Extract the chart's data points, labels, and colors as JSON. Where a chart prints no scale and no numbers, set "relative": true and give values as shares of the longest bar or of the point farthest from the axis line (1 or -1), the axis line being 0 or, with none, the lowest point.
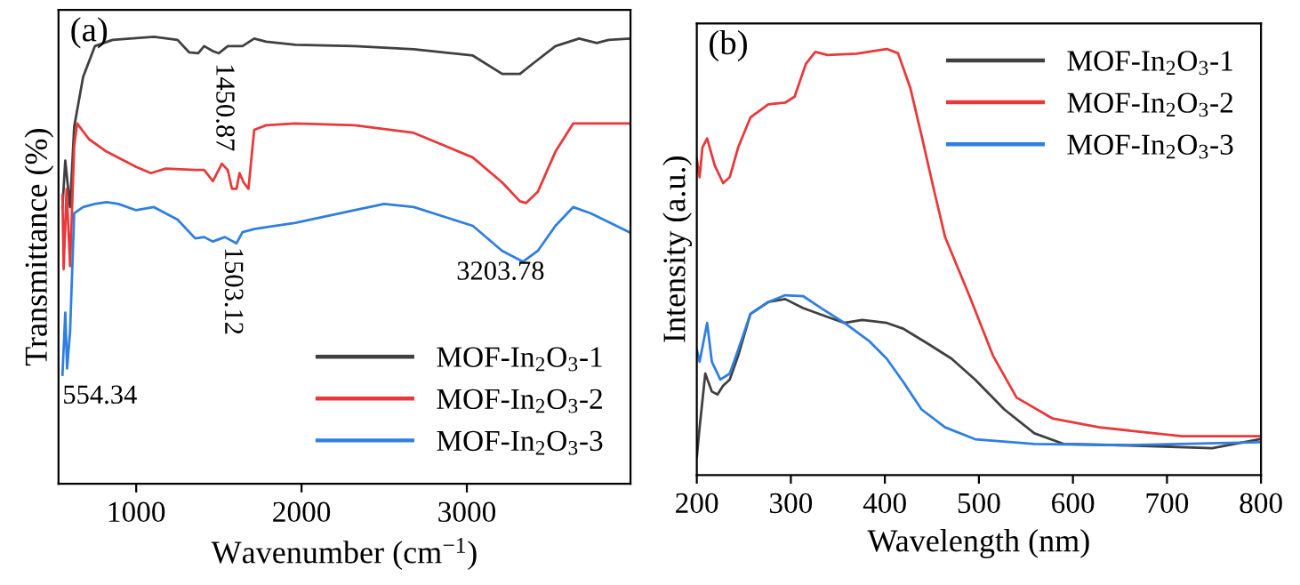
{
  "chart_data": [
    {
      "type": "line",
      "title": "(a)",
      "xlabel": "Wavenumber (cm$^{−1}$)",
      "ylabel": "Transmittance (%)",
      "relative": true,
      "tick_labels": "x",
      "legend": "bottom right",
      "grid": false,
      "xlim": [
        530,
        3990
      ],
      "xticks": [
        1000,
        2000,
        3000
      ],
      "annotations": [
        {
          "text": "1450.87",
          "x": 1450.87,
          "y": 0.963
        },
        {
          "text": "1503.12",
          "x": 1503.12,
          "y": 0.552
        },
        {
          "text": "3203.78",
          "x": 3203.78,
          "y": 0.521
        },
        {
          "text": "554.34",
          "x": 554.34,
          "y": 0.244
        }
      ],
      "series": [
        {
          "name": "MOF-In$_{2}$O$_{3}$-1",
          "color": "#404040",
          "x": [
            554,
            571,
            600,
            625,
            679,
            750,
            857,
            1107,
            1250,
            1321,
            1375,
            1411,
            1464,
            1500,
            1554,
            1643,
            1714,
            1786,
            1964,
            2321,
            2679,
            3036,
            3214,
            3321,
            3393,
            3536,
            3679,
            3786,
            3857,
            3982
          ],
          "values": [
            0.619,
            0.723,
            0.619,
            0.799,
            0.91,
            0.979,
            0.993,
            1,
            0.993,
            0.965,
            0.963,
            0.979,
            0.968,
            0.963,
            0.979,
            0.979,
            0.996,
            0.989,
            0.982,
            0.979,
            0.972,
            0.958,
            0.917,
            0.917,
            0.938,
            0.979,
            0.996,
            0.986,
            0.993,
            0.996
          ]
        },
        {
          "name": "MOF-In$_{2}$O$_{3}$-2",
          "color": "#e8393a",
          "x": [
            554,
            561,
            579,
            600,
            625,
            643,
            714,
            821,
            1000,
            1089,
            1179,
            1357,
            1411,
            1464,
            1518,
            1554,
            1579,
            1607,
            1625,
            1650,
            1679,
            1714,
            1786,
            1964,
            2321,
            2679,
            3036,
            3214,
            3321,
            3357,
            3429,
            3536,
            3643,
            3786,
            3982
          ],
          "values": [
            0.646,
            0.48,
            0.66,
            0.487,
            0.757,
            0.806,
            0.771,
            0.743,
            0.709,
            0.695,
            0.705,
            0.702,
            0.702,
            0.677,
            0.716,
            0.702,
            0.66,
            0.66,
            0.695,
            0.674,
            0.66,
            0.792,
            0.802,
            0.806,
            0.802,
            0.785,
            0.73,
            0.674,
            0.632,
            0.628,
            0.653,
            0.743,
            0.806,
            0.806,
            0.806
          ]
        },
        {
          "name": "MOF-In$_{2}$O$_{3}$-3",
          "color": "#2f7fe0",
          "x": [
            554,
            571,
            582,
            600,
            625,
            679,
            750,
            821,
            893,
            1000,
            1107,
            1250,
            1357,
            1411,
            1464,
            1536,
            1607,
            1643,
            1714,
            1964,
            2321,
            2500,
            2679,
            3036,
            3214,
            3339,
            3429,
            3536,
            3643,
            3750,
            3982
          ],
          "values": [
            0.244,
            0.383,
            0.258,
            0.341,
            0.605,
            0.619,
            0.626,
            0.63,
            0.626,
            0.612,
            0.619,
            0.591,
            0.549,
            0.552,
            0.542,
            0.552,
            0.538,
            0.563,
            0.57,
            0.584,
            0.612,
            0.626,
            0.619,
            0.577,
            0.521,
            0.497,
            0.521,
            0.577,
            0.619,
            0.605,
            0.563
          ]
        }
      ]
    },
    {
      "type": "line",
      "title": "(b)",
      "xlabel": "Wavelength (nm)",
      "ylabel": "Intensity (a.u.)",
      "relative": true,
      "tick_labels": "x",
      "legend": "top right",
      "grid": false,
      "xlim": [
        200,
        800
      ],
      "xticks": [
        200,
        300,
        400,
        500,
        600,
        700,
        800
      ],
      "series": [
        {
          "name": "MOF-In$_{2}$O$_{3}$-1",
          "color": "#404040",
          "x": [
            200,
            203,
            209,
            216,
            222,
            228,
            235,
            244,
            257,
            276,
            294,
            313,
            339,
            357,
            376,
            402,
            420,
            446,
            471,
            496,
            527,
            559,
            590,
            653,
            748,
            798
          ],
          "values": [
            0.042,
            0.112,
            0.238,
            0.196,
            0.189,
            0.21,
            0.224,
            0.28,
            0.378,
            0.406,
            0.413,
            0.392,
            0.371,
            0.357,
            0.364,
            0.357,
            0.343,
            0.308,
            0.273,
            0.224,
            0.154,
            0.098,
            0.073,
            0.07,
            0.063,
            0.084
          ]
        },
        {
          "name": "MOF-In$_{2}$O$_{3}$-2",
          "color": "#e8393a",
          "x": [
            200,
            203,
            206,
            211,
            219,
            228,
            235,
            244,
            257,
            276,
            294,
            304,
            316,
            326,
            339,
            370,
            402,
            414,
            427,
            439,
            452,
            464,
            490,
            515,
            540,
            578,
            628,
            716,
            798
          ],
          "values": [
            0.741,
            0.699,
            0.769,
            0.79,
            0.727,
            0.685,
            0.699,
            0.769,
            0.839,
            0.87,
            0.874,
            0.888,
            0.965,
            0.993,
            0.986,
            0.989,
            1,
            0.99,
            0.909,
            0.797,
            0.671,
            0.559,
            0.42,
            0.28,
            0.182,
            0.133,
            0.112,
            0.091,
            0.091
          ]
        },
        {
          "name": "MOF-In$_{2}$O$_{3}$-3",
          "color": "#2f7fe0",
          "x": [
            200,
            203,
            211,
            216,
            225,
            235,
            244,
            257,
            276,
            294,
            313,
            332,
            357,
            383,
            402,
            420,
            439,
            464,
            496,
            559,
            653,
            798
          ],
          "values": [
            0.294,
            0.266,
            0.357,
            0.266,
            0.224,
            0.238,
            0.294,
            0.378,
            0.406,
            0.422,
            0.42,
            0.392,
            0.357,
            0.315,
            0.273,
            0.217,
            0.154,
            0.112,
            0.084,
            0.073,
            0.07,
            0.077
          ]
        }
      ]
    }
  ]
}
